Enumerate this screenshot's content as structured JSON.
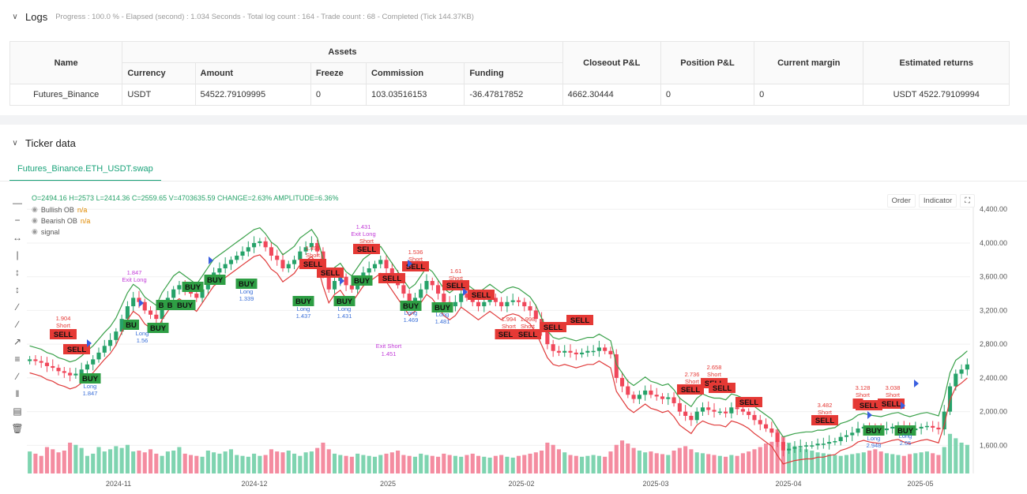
{
  "logs": {
    "title": "Logs",
    "meta": "Progress : 100.0 % - Elapsed (second) : 1.034  Seconds - Total log count : 164 - Trade count : 68 - Completed (Tick 144.37KB)"
  },
  "assets_table": {
    "group_header": "Assets",
    "headers": {
      "name": "Name",
      "currency": "Currency",
      "amount": "Amount",
      "freeze": "Freeze",
      "commission": "Commission",
      "funding": "Funding",
      "closeout": "Closeout P&L",
      "position": "Position P&L",
      "margin": "Current margin",
      "returns": "Estimated returns"
    },
    "row": {
      "name": "Futures_Binance",
      "currency": "USDT",
      "amount": "54522.79109995",
      "freeze": "0",
      "commission": "103.03516153",
      "funding": "-36.47817852",
      "closeout": "4662.30444",
      "position": "0",
      "margin": "0",
      "returns": "USDT 4522.79109994"
    }
  },
  "ticker": {
    "title": "Ticker data",
    "tab": "Futures_Binance.ETH_USDT.swap"
  },
  "chart_header": {
    "ohlc": "O=2494.16 H=2573 L=2414.36 C=2559.65 V=4703635.59 CHANGE=2.63% AMPLITUDE=6.36%",
    "legend": [
      {
        "label": "Bullish OB",
        "value": "n/a"
      },
      {
        "label": "Bearish OB",
        "value": "n/a"
      },
      {
        "label": "signal",
        "value": ""
      }
    ],
    "buttons": {
      "order": "Order",
      "indicator": "Indicator"
    }
  },
  "chart_data": {
    "type": "candlestick",
    "symbol": "Futures_Binance.ETH_USDT.swap",
    "y_ticks": [
      "4,400.00",
      "4,000.00",
      "3,600.00",
      "3,200.00",
      "2,800.00",
      "2,400.00",
      "2,000.00",
      "1,600.00"
    ],
    "y_range": [
      1360,
      4580
    ],
    "x_labels": [
      "2024-11",
      "2024-12",
      "2025",
      "2025-02",
      "2025-03",
      "2025-04",
      "2025-05"
    ],
    "closes": [
      2620,
      2600,
      2580,
      2540,
      2520,
      2480,
      2460,
      2430,
      2450,
      2500,
      2560,
      2620,
      2700,
      2780,
      2850,
      2950,
      3100,
      3250,
      3350,
      3300,
      3200,
      3150,
      3100,
      3250,
      3350,
      3450,
      3500,
      3450,
      3400,
      3350,
      3450,
      3550,
      3650,
      3700,
      3750,
      3800,
      3850,
      3900,
      3950,
      4000,
      4020,
      3950,
      3850,
      3800,
      3700,
      3750,
      3800,
      3900,
      3950,
      4000,
      3900,
      3650,
      3450,
      3550,
      3600,
      3500,
      3450,
      3550,
      3650,
      3700,
      3750,
      3800,
      3700,
      3600,
      3500,
      3400,
      3300,
      3350,
      3450,
      3550,
      3500,
      3400,
      3300,
      3250,
      3300,
      3400,
      3350,
      3300,
      3250,
      3300,
      3350,
      3300,
      3250,
      3300,
      3320,
      3300,
      3250,
      3200,
      3100,
      2950,
      2800,
      2720,
      2700,
      2720,
      2700,
      2680,
      2700,
      2720,
      2720,
      2760,
      2720,
      2680,
      2400,
      2300,
      2200,
      2150,
      2200,
      2250,
      2200,
      2180,
      2150,
      2170,
      2100,
      2000,
      1950,
      1900,
      2000,
      2050,
      2020,
      2000,
      2000,
      1980,
      2050,
      2030,
      2000,
      1960,
      1900,
      1850,
      1800,
      1750,
      1640,
      1540,
      1560,
      1580,
      1590,
      1600,
      1600,
      1620,
      1620,
      1640,
      1650,
      1700,
      1720,
      1750,
      1800,
      1820,
      1800,
      1790,
      1780,
      1800,
      1820,
      1830,
      1800,
      1780,
      1800,
      1820,
      1830,
      1810,
      1790,
      2000,
      2300,
      2450,
      2500,
      2560
    ],
    "volumes": [
      50,
      45,
      40,
      60,
      55,
      48,
      52,
      70,
      65,
      58,
      40,
      45,
      60,
      50,
      55,
      62,
      58,
      65,
      50,
      52,
      48,
      55,
      45,
      40,
      50,
      52,
      60,
      45,
      42,
      40,
      38,
      52,
      48,
      45,
      50,
      55,
      42,
      40,
      38,
      45,
      40,
      42,
      55,
      50,
      48,
      52,
      45,
      40,
      48,
      50,
      58,
      70,
      55,
      45,
      42,
      40,
      38,
      45,
      42,
      40,
      38,
      42,
      45,
      48,
      52,
      42,
      40,
      38,
      45,
      42,
      40,
      38,
      45,
      42,
      40,
      38,
      42,
      45,
      40,
      38,
      36,
      40,
      42,
      38,
      36,
      40,
      42,
      45,
      48,
      52,
      70,
      65,
      55,
      48,
      42,
      40,
      38,
      40,
      42,
      40,
      38,
      50,
      65,
      75,
      68,
      58,
      52,
      48,
      50,
      46,
      44,
      42,
      52,
      58,
      62,
      55,
      48,
      46,
      44,
      42,
      40,
      38,
      42,
      40,
      46,
      50,
      55,
      60,
      68,
      72,
      100,
      85,
      70,
      62,
      58,
      55,
      52,
      48,
      46,
      44,
      42,
      40,
      42,
      44,
      46,
      48,
      52,
      55,
      50,
      46,
      44,
      42,
      40,
      44,
      46,
      48,
      50,
      46,
      42,
      60,
      90,
      80,
      70,
      65
    ],
    "annotations": [
      {
        "i": 9,
        "type": "sell",
        "text": "SELL",
        "sub": "1.904 Short"
      },
      {
        "i": 15,
        "type": "sell",
        "text": "SELL",
        "sub": ""
      },
      {
        "i": 18,
        "type": "buy",
        "text": "BUY",
        "sub": "Long 1.847"
      },
      {
        "i": 33,
        "type": "buy",
        "text": "BU",
        "sub": "Long 1.56"
      },
      {
        "i": 37,
        "type": "buy",
        "text": "B",
        "sub": ""
      },
      {
        "i": 40,
        "type": "buy",
        "text": "B",
        "sub": ""
      },
      {
        "i": 44,
        "type": "buy",
        "text": "BUY",
        "sub": ""
      },
      {
        "i": 48,
        "type": "buy",
        "text": "BUY",
        "sub": ""
      },
      {
        "i": 55,
        "type": "buy",
        "text": "BUY",
        "sub": ""
      },
      {
        "i": 62,
        "type": "buy",
        "text": "BUY",
        "sub": "Long 1.339"
      },
      {
        "i": 70,
        "type": "sell",
        "text": "SELL",
        "sub": "1.495 Short"
      },
      {
        "i": 74,
        "type": "sell",
        "text": "SELL",
        "sub": ""
      },
      {
        "i": 79,
        "type": "buy",
        "text": "BUY",
        "sub": "Long 1.437"
      },
      {
        "i": 90,
        "type": "buy",
        "text": "BUY",
        "sub": "Long 1.431"
      },
      {
        "i": 95,
        "type": "sell",
        "text": "SELL",
        "sub": "1.431 Exit Long Short"
      },
      {
        "i": 99,
        "type": "buy",
        "text": "BUY",
        "sub": ""
      },
      {
        "i": 103,
        "type": "sell",
        "text": "SELL",
        "sub": ""
      },
      {
        "i": 108,
        "type": "buy",
        "text": "BUY",
        "sub": "Long 1.469"
      },
      {
        "i": 110,
        "type": "sell",
        "text": "SELL",
        "sub": "1.536 Short"
      }
    ],
    "texts": {
      "exit_long": "Exit Long",
      "exit_long_val": "1.847",
      "exit_short": "Exit Short",
      "exit_short_val": "1.451",
      "long_1": "Long",
      "long_1_val": "1.847",
      "long_2": "Long",
      "long_2_val": "1.56",
      "long_3": "Long",
      "long_3_val": "1.339",
      "long_4": "Long",
      "long_4_val": "1.437",
      "long_5": "Long",
      "long_5_val": "1.431",
      "long_6": "Long",
      "long_6_val": "1.469",
      "long_7": "Long",
      "long_7_val": "1.481",
      "long_8": "Long",
      "long_8_val": "2.948",
      "long_9": "Long",
      "long_9_val": "2.65",
      "short_1": "1.904",
      "short_1b": "Short",
      "short_2": "1.495",
      "short_2b": "Short",
      "short_3": "1.536",
      "short_3b": "Short",
      "short_4": "1.61",
      "short_4b": "Short",
      "short_5": "1.994",
      "short_5b": "Short",
      "short_6": "1.998",
      "short_6b": "Short",
      "short_7": "2.736",
      "short_7b": "Short",
      "short_8": "2.658",
      "short_8b": "Short",
      "short_9": "3.482",
      "short_9b": "Short",
      "short_10": "3.128",
      "short_10b": "Short",
      "short_11": "3.038",
      "short_11b": "Short",
      "top_1": "1.431",
      "top_1b": "Exit Long",
      "top_1c": "Short"
    }
  }
}
